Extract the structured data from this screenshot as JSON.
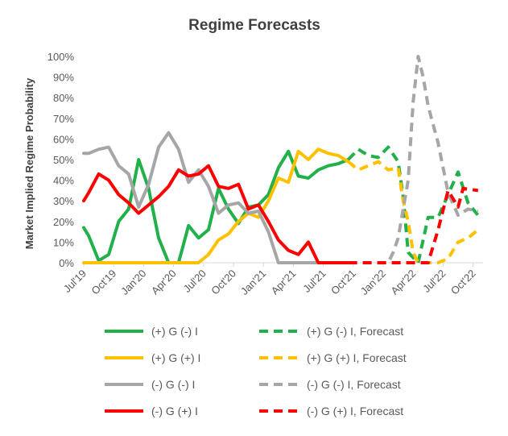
{
  "chart_data": {
    "type": "line",
    "title": "Regime Forecasts",
    "ylabel": "Market Implied Regime Probability",
    "xlabel": "",
    "ylim": [
      0,
      100
    ],
    "y_ticks": [
      "0%",
      "10%",
      "20%",
      "30%",
      "40%",
      "50%",
      "60%",
      "70%",
      "80%",
      "90%",
      "100%"
    ],
    "x_tick_labels": [
      {
        "label": "Jul'19",
        "month": 0
      },
      {
        "label": "Oct'19",
        "month": 3
      },
      {
        "label": "Jan'20",
        "month": 6
      },
      {
        "label": "Apr'20",
        "month": 9
      },
      {
        "label": "Jul'20",
        "month": 12
      },
      {
        "label": "Oct'20",
        "month": 15
      },
      {
        "label": "Jan'21",
        "month": 18
      },
      {
        "label": "Apr'21",
        "month": 21
      },
      {
        "label": "Jul'21",
        "month": 24
      },
      {
        "label": "Oct'21",
        "month": 27
      },
      {
        "label": "Jan'22",
        "month": 30
      },
      {
        "label": "Apr'22",
        "month": 33
      },
      {
        "label": "Jul'22",
        "month": 36
      },
      {
        "label": "Oct'22",
        "month": 39
      }
    ],
    "grid": false,
    "legend_position": "bottom",
    "series": [
      {
        "name": "(+) G (-) I",
        "color": "#22b04b",
        "style": "solid",
        "points": [
          [
            0,
            17
          ],
          [
            0.5,
            13
          ],
          [
            1.5,
            1
          ],
          [
            2.5,
            4
          ],
          [
            3.5,
            20
          ],
          [
            4.5,
            26
          ],
          [
            5.5,
            50
          ],
          [
            6.5,
            36
          ],
          [
            7.5,
            12
          ],
          [
            8.5,
            0
          ],
          [
            9.5,
            0
          ],
          [
            10.5,
            18
          ],
          [
            11.5,
            12
          ],
          [
            12.5,
            16
          ],
          [
            13.5,
            36
          ],
          [
            14.5,
            26
          ],
          [
            15.5,
            19
          ],
          [
            16.5,
            27
          ],
          [
            17.5,
            28
          ],
          [
            18.5,
            33
          ],
          [
            19.5,
            46
          ],
          [
            20.5,
            54
          ],
          [
            21.5,
            42
          ],
          [
            22.5,
            41
          ],
          [
            23.5,
            45
          ],
          [
            24.5,
            47
          ],
          [
            25.5,
            48
          ],
          [
            26.5,
            50
          ]
        ]
      },
      {
        "name": "(+) G (+) I",
        "color": "#ffc000",
        "style": "solid",
        "points": [
          [
            0,
            0
          ],
          [
            1.5,
            0
          ],
          [
            3.5,
            0
          ],
          [
            5.5,
            0
          ],
          [
            7.5,
            0
          ],
          [
            9.5,
            0
          ],
          [
            11.5,
            0
          ],
          [
            12.5,
            4
          ],
          [
            13.5,
            11
          ],
          [
            14.5,
            14
          ],
          [
            15.5,
            20
          ],
          [
            16.5,
            24
          ],
          [
            17.5,
            22
          ],
          [
            18.5,
            30
          ],
          [
            19.5,
            41
          ],
          [
            20.5,
            39
          ],
          [
            21.5,
            54
          ],
          [
            22.5,
            50
          ],
          [
            23.5,
            55
          ],
          [
            24.5,
            53
          ],
          [
            25.5,
            52
          ],
          [
            26.5,
            49
          ]
        ]
      },
      {
        "name": "(-) G (-) I",
        "color": "#a6a6a6",
        "style": "solid",
        "points": [
          [
            0,
            53
          ],
          [
            0.5,
            53
          ],
          [
            1.5,
            55
          ],
          [
            2.5,
            56
          ],
          [
            3.5,
            47
          ],
          [
            4.5,
            43
          ],
          [
            5.5,
            27
          ],
          [
            6.5,
            38
          ],
          [
            7.5,
            56
          ],
          [
            8.5,
            63
          ],
          [
            9.5,
            55
          ],
          [
            10.5,
            39
          ],
          [
            11.5,
            45
          ],
          [
            12.5,
            37
          ],
          [
            13.5,
            24
          ],
          [
            14.5,
            28
          ],
          [
            15.5,
            29
          ],
          [
            16.5,
            24
          ],
          [
            17.5,
            25
          ],
          [
            18.5,
            15
          ],
          [
            19.5,
            0
          ],
          [
            20.5,
            0
          ],
          [
            22.5,
            0
          ],
          [
            24.5,
            0
          ],
          [
            26.5,
            0
          ]
        ]
      },
      {
        "name": "(-) G (+) I",
        "color": "#ff0000",
        "style": "solid",
        "points": [
          [
            0,
            30
          ],
          [
            0.5,
            34
          ],
          [
            1.5,
            43
          ],
          [
            2.5,
            40
          ],
          [
            3.5,
            33
          ],
          [
            4.5,
            29
          ],
          [
            5.5,
            24
          ],
          [
            6.5,
            28
          ],
          [
            7.5,
            32
          ],
          [
            8.5,
            37
          ],
          [
            9.5,
            45
          ],
          [
            10.5,
            42
          ],
          [
            11.5,
            43
          ],
          [
            12.5,
            47
          ],
          [
            13.5,
            37
          ],
          [
            14.5,
            36
          ],
          [
            15.5,
            38
          ],
          [
            16.5,
            26
          ],
          [
            17.5,
            28
          ],
          [
            18.5,
            20
          ],
          [
            19.5,
            11
          ],
          [
            20.5,
            6
          ],
          [
            21.5,
            4
          ],
          [
            22.5,
            10
          ],
          [
            23.5,
            0
          ],
          [
            24.5,
            0
          ],
          [
            26.5,
            0
          ]
        ]
      },
      {
        "name": "(+) G (-) I, Forecast",
        "color": "#22b04b",
        "style": "dashed",
        "points": [
          [
            26.5,
            50
          ],
          [
            27.5,
            55
          ],
          [
            28.5,
            52
          ],
          [
            29.5,
            51
          ],
          [
            30.5,
            56
          ],
          [
            31.5,
            49
          ],
          [
            32,
            32
          ],
          [
            32.5,
            5
          ],
          [
            33.5,
            0
          ],
          [
            34.5,
            22
          ],
          [
            35.5,
            22
          ],
          [
            36.5,
            33
          ],
          [
            37.5,
            44
          ],
          [
            38.5,
            29
          ],
          [
            39.5,
            23
          ]
        ]
      },
      {
        "name": "(+) G (+) I, Forecast",
        "color": "#ffc000",
        "style": "dashed",
        "points": [
          [
            26.5,
            49
          ],
          [
            27.5,
            45
          ],
          [
            28.5,
            47
          ],
          [
            29.5,
            49
          ],
          [
            30.5,
            45
          ],
          [
            31.5,
            46
          ],
          [
            32,
            30
          ],
          [
            32.5,
            20
          ],
          [
            33,
            5
          ],
          [
            33.5,
            0
          ],
          [
            34.5,
            0
          ],
          [
            35.5,
            0
          ],
          [
            36.5,
            2
          ],
          [
            37.5,
            10
          ],
          [
            38.5,
            12
          ],
          [
            39.5,
            16
          ]
        ]
      },
      {
        "name": "(-) G (-) I, Forecast",
        "color": "#a6a6a6",
        "style": "dashed",
        "points": [
          [
            26.5,
            0
          ],
          [
            28.5,
            0
          ],
          [
            30.5,
            0
          ],
          [
            31,
            5
          ],
          [
            31.5,
            12
          ],
          [
            32.5,
            40
          ],
          [
            33,
            78
          ],
          [
            33.5,
            100
          ],
          [
            34,
            90
          ],
          [
            34.5,
            76
          ],
          [
            35.5,
            58
          ],
          [
            36.5,
            34
          ],
          [
            37.5,
            23
          ],
          [
            38.5,
            26
          ],
          [
            39.5,
            25
          ]
        ]
      },
      {
        "name": "(-) G (+) I, Forecast",
        "color": "#ff0000",
        "style": "dashed",
        "points": [
          [
            26.5,
            0
          ],
          [
            28.5,
            0
          ],
          [
            30.5,
            0
          ],
          [
            32.5,
            0
          ],
          [
            33.5,
            0
          ],
          [
            34.5,
            0
          ],
          [
            35.5,
            16
          ],
          [
            36.5,
            35
          ],
          [
            37.5,
            27
          ],
          [
            38,
            36
          ],
          [
            39.5,
            35
          ]
        ]
      }
    ]
  }
}
